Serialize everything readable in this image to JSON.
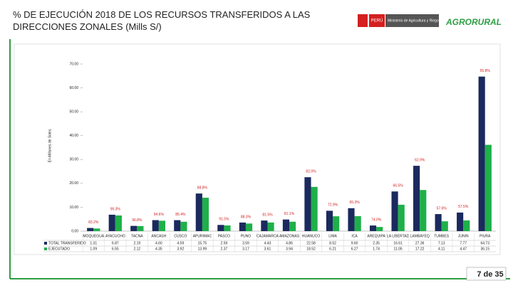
{
  "slide": {
    "logo_country": "PERÚ",
    "logo_ministry": "Ministerio de Agricultura y Riego",
    "logo_brand": "AGRORURAL",
    "page": "7 de 35"
  },
  "chart_data": {
    "type": "bar",
    "title": "% DE EJECUCIÓN 2018 DE LOS RECURSOS TRANSFERIDOS A LAS DIRECCIONES ZONALES (Mills S/)",
    "y_label": "En Millones de Soles",
    "categories": [
      "MOQUEGUA",
      "AYACUCHO",
      "TACNA",
      "ANCASH",
      "CUSCO",
      "APURIMAC",
      "PASCO",
      "PUNO",
      "CAJAMARCA",
      "AMAZONAS",
      "HUANUCO",
      "LIMA",
      "ICA",
      "AREQUIPA",
      "LA LIBERTAD",
      "LAMBAYEQ",
      "TUMBES",
      "JUNIN",
      "PIURA"
    ],
    "series": [
      {
        "name": "TOTAL TRANSFERIDO",
        "color": "#1b2a5e",
        "values": [
          1.31,
          6.87,
          2.19,
          4.6,
          4.59,
          15.75,
          2.59,
          3.59,
          4.43,
          4.86,
          22.58,
          8.52,
          9.6,
          2.35,
          16.61,
          27.36,
          7.13,
          7.77,
          64.73
        ],
        "value_labels": [
          "1.31",
          "6.87",
          "2.19",
          "4.60",
          "4.59",
          "15.75",
          "2.59",
          "3.59",
          "4.43",
          "4.86",
          "22.58",
          "8.52",
          "9.60",
          "2.35",
          "16.61",
          "27.36",
          "7.13",
          "7.77",
          "64.73"
        ]
      },
      {
        "name": "EJECUTADO",
        "color": "#1fb04a",
        "values": [
          1.09,
          6.55,
          2.12,
          4.35,
          3.92,
          13.99,
          2.37,
          3.17,
          3.61,
          3.94,
          18.52,
          6.21,
          6.27,
          1.74,
          11.05,
          17.22,
          4.11,
          4.47,
          36.15
        ],
        "value_labels": [
          "1.09",
          "6.55",
          "2.12",
          "4.35",
          "3.92",
          "13.99",
          "2.37",
          "3.17",
          "3.61",
          "3.94",
          "18.52",
          "6.21",
          "6.27",
          "1.74",
          "11.05",
          "17.22",
          "4.11",
          "4.47",
          "36.15"
        ]
      }
    ],
    "percent_labels": [
      "83.2%",
      "95.3%",
      "96.8%",
      "94.6%",
      "85.4%",
      "88.8%",
      "91.5%",
      "88.3%",
      "81.5%",
      "81.1%",
      "82.0%",
      "72.9%",
      "65.3%",
      "74.0%",
      "66.5%",
      "62.9%",
      "57.6%",
      "57.5%",
      "55.8%"
    ],
    "percent_color": "#d42020",
    "ylim": [
      0,
      70
    ],
    "yticks": [
      {
        "value": 0,
        "label": "0.00"
      },
      {
        "value": 10,
        "label": "10.00"
      },
      {
        "value": 20,
        "label": "20.00"
      },
      {
        "value": 30,
        "label": "30.00"
      },
      {
        "value": 40,
        "label": "40.00"
      },
      {
        "value": 50,
        "label": "50.00"
      },
      {
        "value": 60,
        "label": "60.00"
      },
      {
        "value": 70,
        "label": "70.00"
      }
    ],
    "grid": false
  }
}
